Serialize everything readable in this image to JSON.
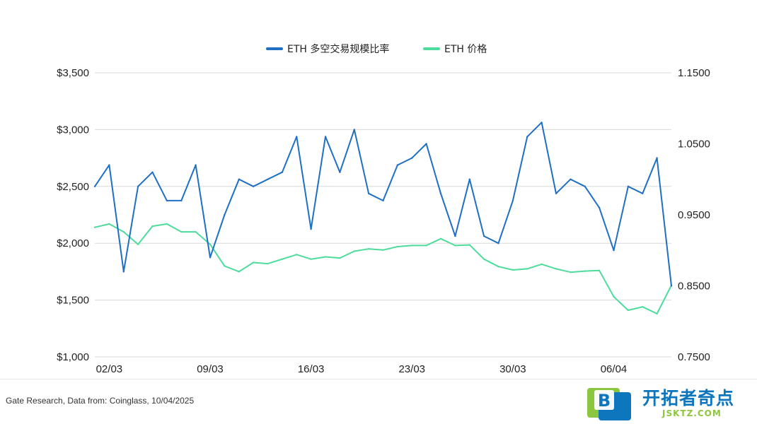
{
  "chart_data": {
    "type": "line",
    "x": [
      "01/03",
      "02/03",
      "03/03",
      "04/03",
      "05/03",
      "06/03",
      "07/03",
      "08/03",
      "09/03",
      "10/03",
      "11/03",
      "12/03",
      "13/03",
      "14/03",
      "15/03",
      "16/03",
      "17/03",
      "18/03",
      "19/03",
      "20/03",
      "21/03",
      "22/03",
      "23/03",
      "24/03",
      "25/03",
      "26/03",
      "27/03",
      "28/03",
      "29/03",
      "30/03",
      "31/03",
      "01/04",
      "02/04",
      "03/04",
      "04/04",
      "05/04",
      "06/04",
      "07/04",
      "08/04",
      "09/04",
      "10/04"
    ],
    "xticks": [
      "02/03",
      "09/03",
      "16/03",
      "23/03",
      "30/03",
      "06/04"
    ],
    "series": [
      {
        "name": "ETH 多空交易规模比率",
        "color": "#1f6fc5",
        "axis": "right",
        "values": [
          0.99,
          1.02,
          0.87,
          0.99,
          1.01,
          0.97,
          0.97,
          1.02,
          0.89,
          0.95,
          1.0,
          0.99,
          1.0,
          1.01,
          1.06,
          0.93,
          1.06,
          1.01,
          1.07,
          0.98,
          0.97,
          1.02,
          1.03,
          1.05,
          0.98,
          0.92,
          1.0,
          0.92,
          0.91,
          0.97,
          1.06,
          1.08,
          0.98,
          1.0,
          0.99,
          0.96,
          0.9,
          0.99,
          0.98,
          1.03,
          0.85
        ]
      },
      {
        "name": "ETH  价格",
        "color": "#4ddc9b",
        "axis": "left",
        "values": [
          2140,
          2170,
          2100,
          1990,
          2150,
          2170,
          2100,
          2100,
          1990,
          1800,
          1750,
          1830,
          1820,
          1860,
          1900,
          1860,
          1880,
          1870,
          1930,
          1950,
          1940,
          1970,
          1980,
          1980,
          2040,
          1980,
          1985,
          1860,
          1795,
          1765,
          1775,
          1815,
          1775,
          1745,
          1755,
          1760,
          1530,
          1410,
          1440,
          1380,
          1630
        ]
      }
    ],
    "left_axis": {
      "ticks": [
        "$1,000",
        "$1,500",
        "$2,000",
        "$2,500",
        "$3,000",
        "$3,500"
      ],
      "range": [
        1000,
        3500
      ]
    },
    "right_axis": {
      "ticks": [
        "0.7500",
        "0.8500",
        "0.9500",
        "1.0500",
        "1.1500"
      ],
      "range": [
        0.75,
        1.15
      ]
    },
    "grid": true,
    "legend_position": "top-center"
  },
  "footer": {
    "source": "Gate Research, Data from: Coinglass, 10/04/2025",
    "logo_cn": "开拓者奇点",
    "logo_en": "JSKTZ.COM",
    "logo_badge": "B"
  }
}
